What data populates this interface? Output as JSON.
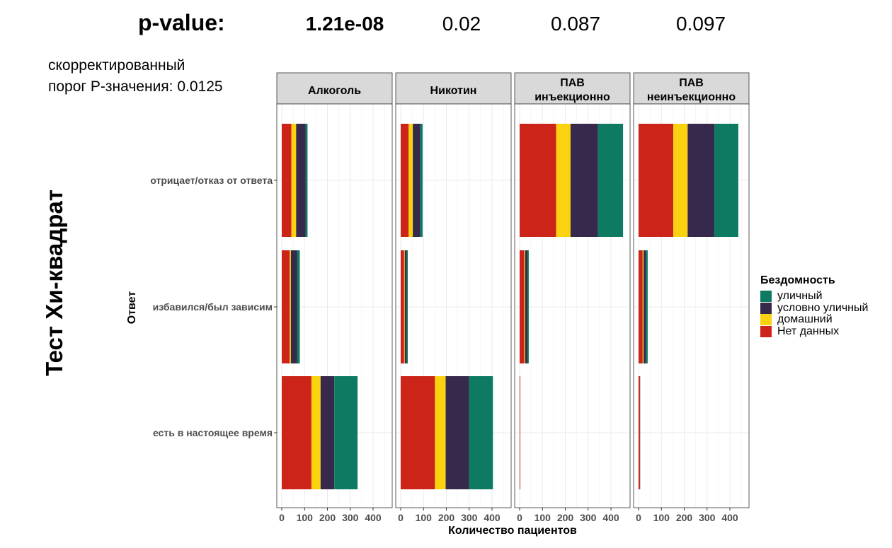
{
  "header": {
    "pvalue_label": "p-value:",
    "pvalues": [
      "1.21e-08",
      "0.02",
      "0.087",
      "0.097"
    ]
  },
  "note": {
    "line1": "скорректированный",
    "line2": "порог P-значения: 0.0125"
  },
  "side_title": "Тест Хи-квадрат",
  "colors": {
    "уличный": "#0e7a62",
    "условно уличный": "#36294b",
    "домашний": "#fad20f",
    "Нет данных": "#cc2418",
    "strip_bg": "#d9d9d9",
    "grid": "#ebebeb"
  },
  "chart_data": {
    "type": "bar",
    "orientation": "horizontal",
    "stacked": true,
    "xlabel": "Количество пациентов",
    "ylabel": "Ответ",
    "xlim": [
      0,
      450
    ],
    "xticks": [
      0,
      100,
      200,
      300,
      400
    ],
    "grid": true,
    "categories": [
      "отрицает/отказ от ответа",
      "избавился/был зависим",
      "есть в настоящее время"
    ],
    "legend": {
      "title": "Бездомность",
      "position": "right",
      "items": [
        "уличный",
        "условно уличный",
        "домашний",
        "Нет данных"
      ]
    },
    "stack_order": [
      "Нет данных",
      "домашний",
      "условно уличный",
      "уличный"
    ],
    "panels": [
      {
        "label": [
          "Алкоголь"
        ],
        "values": {
          "отрицает/отказ от ответа": {
            "Нет данных": 42,
            "домашний": 21,
            "условно уличный": 41,
            "уличный": 9
          },
          "избавился/был зависим": {
            "Нет данных": 35,
            "домашний": 5,
            "условно уличный": 28,
            "уличный": 11
          },
          "есть в настоящее время": {
            "Нет данных": 130,
            "домашний": 40,
            "условно уличный": 60,
            "уличный": 102
          }
        }
      },
      {
        "label": [
          "Никотин"
        ],
        "values": {
          "отрицает/отказ от ответа": {
            "Нет данных": 35,
            "домашний": 18,
            "условно уличный": 32,
            "уличный": 11
          },
          "избавился/был зависим": {
            "Нет данных": 15,
            "домашний": 3,
            "условно уличный": 8,
            "уличный": 5
          },
          "есть в настоящее время": {
            "Нет данных": 150,
            "домашний": 47,
            "условно уличный": 103,
            "уличный": 104
          }
        }
      },
      {
        "label": [
          "ПАВ",
          "инъекционно"
        ],
        "values": {
          "отрицает/отказ от ответа": {
            "Нет данных": 160,
            "домашний": 63,
            "условно уличный": 120,
            "уличный": 110
          },
          "избавился/был зависим": {
            "Нет данных": 20,
            "домашний": 4,
            "условно уличный": 10,
            "уличный": 6
          },
          "есть в настоящее время": {
            "Нет данных": 3,
            "домашний": 0,
            "условно уличный": 0,
            "уличный": 0
          }
        }
      },
      {
        "label": [
          "ПАВ",
          "неинъекционно"
        ],
        "values": {
          "отрицает/отказ от ответа": {
            "Нет данных": 152,
            "домашний": 63,
            "условно уличный": 117,
            "уличный": 105
          },
          "избавился/был зависим": {
            "Нет данных": 18,
            "домашний": 4,
            "условно уличный": 10,
            "уличный": 8
          },
          "есть в настоящее время": {
            "Нет данных": 6,
            "домашний": 0,
            "условно уличный": 1,
            "уличный": 0
          }
        }
      }
    ]
  }
}
